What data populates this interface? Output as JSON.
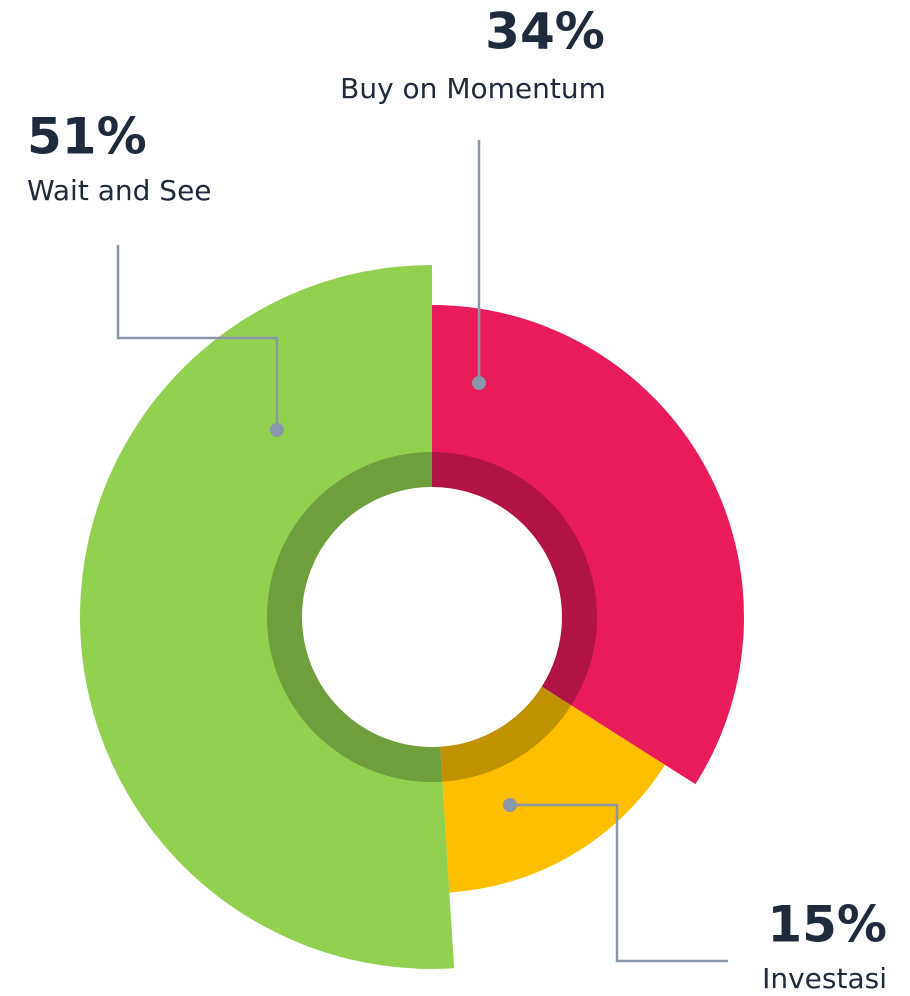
{
  "chart_data": {
    "type": "pie",
    "categories": [
      "Buy on Momentum",
      "Investasi",
      "Wait and See"
    ],
    "values": [
      34,
      15,
      51
    ],
    "value_labels": [
      "34%",
      "15%",
      "51%"
    ],
    "colors": [
      "#e91b5a",
      "#fdbf00",
      "#92d050"
    ]
  }
}
